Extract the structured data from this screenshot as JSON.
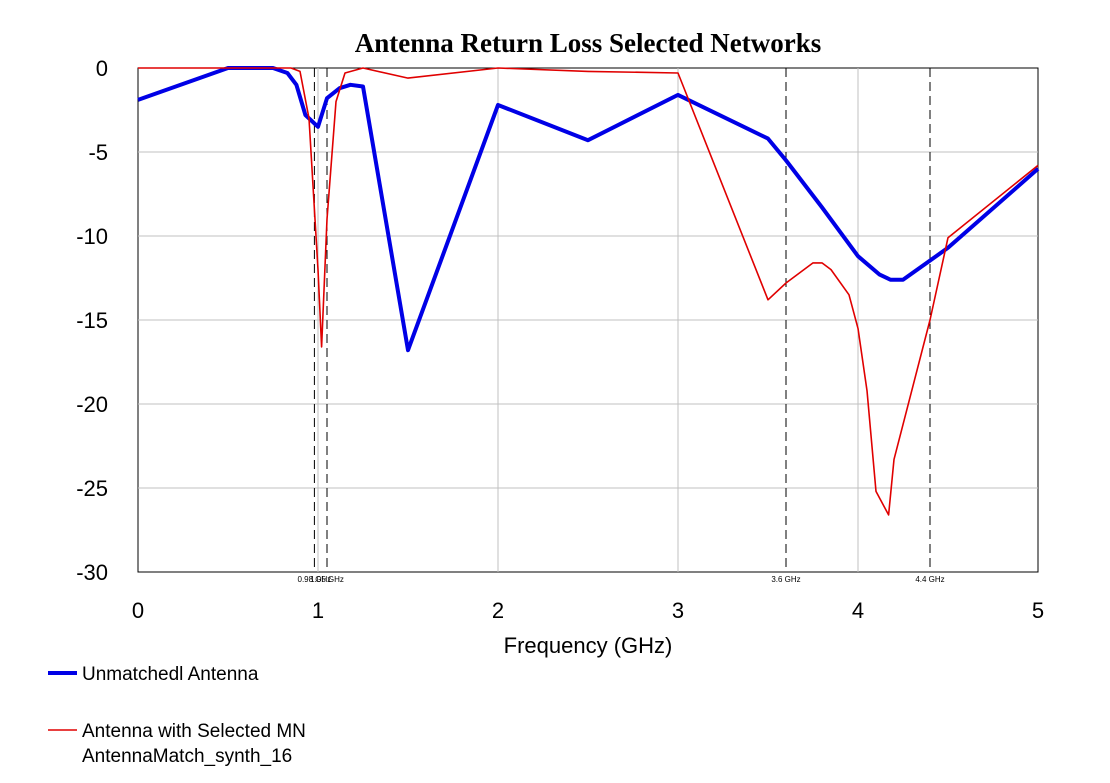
{
  "chart_data": {
    "type": "line",
    "title": "Antenna Return Loss Selected Networks",
    "xlabel": "Frequency (GHz)",
    "ylabel": "",
    "xlim": [
      0,
      5
    ],
    "ylim": [
      -30,
      0
    ],
    "xticks": [
      "0",
      "1",
      "2",
      "3",
      "4",
      "5"
    ],
    "yticks": [
      "0",
      "-5",
      "-10",
      "-15",
      "-20",
      "-25",
      "-30"
    ],
    "grid": true,
    "markers": [
      {
        "x": 0.98,
        "label": "0.98 GHz"
      },
      {
        "x": 1.05,
        "label": "1.05 GHz"
      },
      {
        "x": 3.6,
        "label": "3.6 GHz"
      },
      {
        "x": 4.4,
        "label": "4.4 GHz"
      }
    ],
    "series": [
      {
        "name": "Unmatchedl Antenna",
        "color": "#0000e6",
        "points": [
          [
            0,
            -1.9
          ],
          [
            0.5,
            0
          ],
          [
            0.75,
            0
          ],
          [
            0.83,
            -0.3
          ],
          [
            0.88,
            -1.0
          ],
          [
            0.93,
            -2.8
          ],
          [
            1.0,
            -3.5
          ],
          [
            1.05,
            -1.8
          ],
          [
            1.12,
            -1.2
          ],
          [
            1.18,
            -1.0
          ],
          [
            1.25,
            -1.1
          ],
          [
            1.5,
            -16.8
          ],
          [
            2.0,
            -2.2
          ],
          [
            2.5,
            -4.3
          ],
          [
            3.0,
            -1.6
          ],
          [
            3.5,
            -4.2
          ],
          [
            3.6,
            -5.5
          ],
          [
            3.8,
            -8.3
          ],
          [
            4.0,
            -11.2
          ],
          [
            4.12,
            -12.3
          ],
          [
            4.18,
            -12.6
          ],
          [
            4.25,
            -12.6
          ],
          [
            4.5,
            -10.7
          ],
          [
            5.0,
            -6.0
          ]
        ]
      },
      {
        "name": "Antenna with Selected MN AntennaMatch_synth_16",
        "color": "#e00000",
        "points": [
          [
            0,
            0
          ],
          [
            0.5,
            0
          ],
          [
            0.85,
            0
          ],
          [
            0.9,
            -0.2
          ],
          [
            0.95,
            -3.0
          ],
          [
            1.0,
            -12.0
          ],
          [
            1.02,
            -16.6
          ],
          [
            1.05,
            -9.0
          ],
          [
            1.1,
            -2.0
          ],
          [
            1.15,
            -0.3
          ],
          [
            1.25,
            0
          ],
          [
            1.5,
            -0.6
          ],
          [
            2.0,
            0
          ],
          [
            2.5,
            -0.2
          ],
          [
            3.0,
            -0.3
          ],
          [
            3.5,
            -13.8
          ],
          [
            3.6,
            -12.8
          ],
          [
            3.75,
            -11.6
          ],
          [
            3.8,
            -11.6
          ],
          [
            3.85,
            -12.0
          ],
          [
            3.95,
            -13.5
          ],
          [
            4.0,
            -15.5
          ],
          [
            4.05,
            -19.2
          ],
          [
            4.1,
            -25.2
          ],
          [
            4.17,
            -26.6
          ],
          [
            4.2,
            -23.3
          ],
          [
            4.4,
            -15.0
          ],
          [
            4.5,
            -10.1
          ],
          [
            5.0,
            -5.8
          ]
        ]
      }
    ],
    "legend": {
      "placement": "bottom-left",
      "entries": [
        {
          "lines": [
            "Unmatchedl Antenna"
          ],
          "color": "#0000e6"
        },
        {
          "lines": [
            "Antenna with Selected MN",
            "AntennaMatch_synth_16"
          ],
          "color": "#e00000"
        }
      ]
    }
  }
}
